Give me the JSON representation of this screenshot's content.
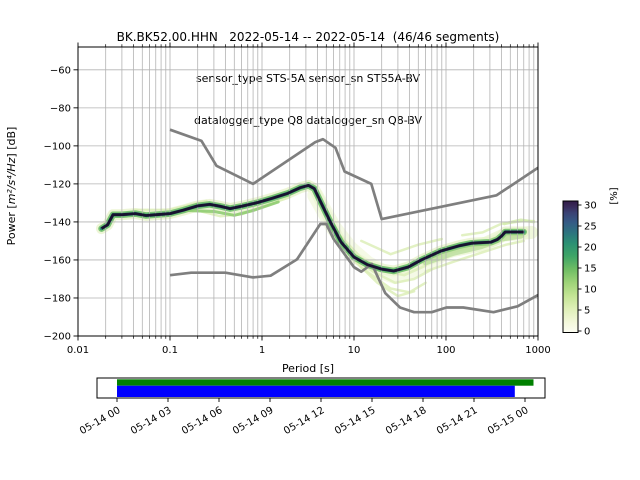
{
  "title": {
    "line1": "BK.BK52.00.HHN   2022-05-14 -- 2022-05-14  (46/46 segments)",
    "line2": "sensor_type STS-5A sensor_sn STS5A-BV",
    "line3": "datalogger_type Q8 datalogger_sn Q8-BV"
  },
  "chart_data": {
    "type": "heatmap",
    "title": "BK.BK52.00.HHN   2022-05-14 -- 2022-05-14  (46/46 segments)",
    "xlabel": "Period [s]",
    "ylabel_prefix": "Power [",
    "ylabel_math": "m²/s⁴/Hz",
    "ylabel_suffix": "] [dB]",
    "xlim": [
      0.01,
      1000
    ],
    "ylim": [
      -200,
      -48
    ],
    "grid": true,
    "grid_color": "#b3b3b3",
    "xticks": {
      "values": [
        0.01,
        0.1,
        1,
        10,
        100,
        1000
      ],
      "labels": [
        "0.01",
        "0.1",
        "1",
        "10",
        "100",
        "1000"
      ]
    },
    "yticks": {
      "values": [
        -200,
        -180,
        -160,
        -140,
        -120,
        -100,
        -80,
        -60
      ],
      "labels": [
        "−200",
        "−180",
        "−160",
        "−140",
        "−120",
        "−100",
        "−80",
        "−60"
      ]
    },
    "colorbar": {
      "label": "[%]",
      "ticks": [
        0,
        5,
        10,
        15,
        20,
        25,
        30
      ],
      "vmax": 31,
      "stops": [
        [
          0,
          "#fdfdf3"
        ],
        [
          0.08,
          "#f3f8da"
        ],
        [
          0.18,
          "#dff0b8"
        ],
        [
          0.28,
          "#c3e494"
        ],
        [
          0.38,
          "#9ed378"
        ],
        [
          0.48,
          "#6fbd64"
        ],
        [
          0.58,
          "#3fa567"
        ],
        [
          0.68,
          "#2b9073"
        ],
        [
          0.76,
          "#2d737f"
        ],
        [
          0.84,
          "#355a85"
        ],
        [
          0.91,
          "#3a4274"
        ],
        [
          0.96,
          "#392a59"
        ],
        [
          1.0,
          "#311b47"
        ]
      ]
    },
    "noise_models": {
      "color": "#7f7f7f",
      "nhnm": [
        [
          0.1,
          -91.5
        ],
        [
          0.22,
          -97.4
        ],
        [
          0.32,
          -110.5
        ],
        [
          0.8,
          -120.0
        ],
        [
          3.8,
          -98.0
        ],
        [
          4.6,
          -96.5
        ],
        [
          6.3,
          -101.0
        ],
        [
          7.9,
          -113.5
        ],
        [
          15.4,
          -120.0
        ],
        [
          20.0,
          -138.5
        ],
        [
          354.8,
          -126.0
        ],
        [
          1000,
          -111.5
        ]
      ],
      "nlnm": [
        [
          0.1,
          -168.0
        ],
        [
          0.17,
          -166.7
        ],
        [
          0.4,
          -166.7
        ],
        [
          0.8,
          -169.2
        ],
        [
          1.24,
          -168.3
        ],
        [
          2.4,
          -159.7
        ],
        [
          4.3,
          -141.1
        ],
        [
          5.0,
          -141.1
        ],
        [
          6.0,
          -149.0
        ],
        [
          10.0,
          -163.8
        ],
        [
          12.0,
          -166.2
        ],
        [
          15.6,
          -162.1
        ],
        [
          21.9,
          -177.5
        ],
        [
          31.6,
          -185.0
        ],
        [
          45.0,
          -187.5
        ],
        [
          70.0,
          -187.5
        ],
        [
          101.0,
          -185.0
        ],
        [
          154.0,
          -185.0
        ],
        [
          328.0,
          -187.5
        ],
        [
          600.0,
          -184.4
        ],
        [
          1000,
          -178.5
        ]
      ]
    },
    "mode_color": "#18122f",
    "mode_line": [
      [
        0.018,
        -143.5
      ],
      [
        0.021,
        -141.5
      ],
      [
        0.024,
        -136.2
      ],
      [
        0.03,
        -136.2
      ],
      [
        0.042,
        -135.6
      ],
      [
        0.055,
        -136.6
      ],
      [
        0.08,
        -136.0
      ],
      [
        0.1,
        -135.6
      ],
      [
        0.14,
        -133.8
      ],
      [
        0.2,
        -131.6
      ],
      [
        0.27,
        -130.8
      ],
      [
        0.35,
        -131.8
      ],
      [
        0.45,
        -133.0
      ],
      [
        0.6,
        -131.8
      ],
      [
        0.9,
        -129.8
      ],
      [
        1.3,
        -127.5
      ],
      [
        1.9,
        -125.0
      ],
      [
        2.6,
        -122.0
      ],
      [
        3.2,
        -120.8
      ],
      [
        3.7,
        -122.5
      ],
      [
        4.2,
        -128.0
      ],
      [
        5.6,
        -140.5
      ],
      [
        7.2,
        -150.5
      ],
      [
        10,
        -158.5
      ],
      [
        14,
        -162.5
      ],
      [
        20,
        -164.8
      ],
      [
        27,
        -165.8
      ],
      [
        39,
        -163.7
      ],
      [
        54,
        -160.0
      ],
      [
        88,
        -155.3
      ],
      [
        140,
        -152.5
      ],
      [
        190,
        -151.2
      ],
      [
        310,
        -150.6
      ],
      [
        360,
        -149.3
      ],
      [
        400,
        -147.5
      ],
      [
        440,
        -145.3
      ],
      [
        700,
        -145.3
      ]
    ],
    "cloud_bands": [
      {
        "points": "mode",
        "color": "#e8f3cc",
        "width": 11,
        "opacity": 0.8
      },
      {
        "points": [
          [
            3.8,
            -126
          ],
          [
            6,
            -143
          ],
          [
            9,
            -154
          ],
          [
            14,
            -162
          ],
          [
            20,
            -166
          ],
          [
            28,
            -168.5
          ],
          [
            40,
            -166
          ],
          [
            60,
            -162
          ],
          [
            90,
            -157
          ]
        ],
        "color": "#eef6d6",
        "width": 16,
        "opacity": 0.6
      },
      {
        "points": [
          [
            60,
            -160
          ],
          [
            120,
            -155
          ],
          [
            250,
            -152
          ],
          [
            420,
            -147
          ],
          [
            850,
            -145.5
          ]
        ],
        "color": "#e8f3cc",
        "width": 13,
        "opacity": 0.7
      },
      {
        "points": [
          [
            4.2,
            -130
          ],
          [
            7,
            -147
          ],
          [
            12,
            -159
          ],
          [
            22,
            -166
          ],
          [
            35,
            -168
          ],
          [
            60,
            -163
          ]
        ],
        "color": "#ddefb8",
        "width": 2.5,
        "opacity": 0.85
      },
      {
        "points": [
          [
            5,
            -137
          ],
          [
            9,
            -155
          ],
          [
            16,
            -166
          ],
          [
            28,
            -172
          ],
          [
            45,
            -170
          ],
          [
            70,
            -165
          ]
        ],
        "color": "#ddefb8",
        "width": 2.5,
        "opacity": 0.85
      },
      {
        "points": [
          [
            6,
            -143
          ],
          [
            12,
            -164
          ],
          [
            25,
            -175
          ],
          [
            40,
            -177
          ],
          [
            60,
            -172
          ]
        ],
        "color": "#ddefb8",
        "width": 2.5,
        "opacity": 0.85
      },
      {
        "points": [
          [
            9,
            -158
          ],
          [
            18,
            -172
          ],
          [
            30,
            -179
          ],
          [
            45,
            -176.5
          ]
        ],
        "color": "#ddefb8",
        "width": 2.5,
        "opacity": 0.85
      },
      {
        "points": [
          [
            12,
            -150
          ],
          [
            25,
            -157
          ],
          [
            50,
            -152
          ],
          [
            90,
            -149
          ]
        ],
        "color": "#ddefb8",
        "width": 2.5,
        "opacity": 0.85
      },
      {
        "points": [
          [
            150,
            -147
          ],
          [
            250,
            -145.5
          ],
          [
            400,
            -141
          ],
          [
            700,
            -139.5
          ],
          [
            900,
            -139.5
          ]
        ],
        "color": "#ddefb8",
        "width": 2.5,
        "opacity": 0.85
      },
      {
        "points": [
          [
            60,
            -166
          ],
          [
            120,
            -161
          ],
          [
            250,
            -156
          ],
          [
            450,
            -152
          ],
          [
            700,
            -150
          ]
        ],
        "color": "#ddefb8",
        "width": 2.5,
        "opacity": 0.85
      },
      {
        "points": [
          [
            0.2,
            -134
          ],
          [
            0.35,
            -137
          ],
          [
            0.6,
            -136
          ],
          [
            1,
            -132
          ],
          [
            2,
            -127
          ]
        ],
        "color": "#ddefb8",
        "width": 2.5,
        "opacity": 0.85
      },
      {
        "points": [
          [
            0.04,
            -133.5
          ],
          [
            0.1,
            -133.5
          ],
          [
            0.25,
            -128.8
          ]
        ],
        "color": "#ddefb8",
        "width": 2,
        "opacity": 0.85
      },
      {
        "points": [
          [
            430,
            -141
          ],
          [
            650,
            -139
          ],
          [
            900,
            -140
          ]
        ],
        "color": "#d4ecae",
        "width": 3,
        "opacity": 0.85
      },
      {
        "points": "mode",
        "color": "#66bb61",
        "width": 6.5,
        "opacity": 0.85
      },
      {
        "points": [
          [
            0.15,
            -134
          ],
          [
            0.3,
            -134.5
          ],
          [
            0.5,
            -136.5
          ],
          [
            0.8,
            -134
          ],
          [
            1.5,
            -129.5
          ]
        ],
        "color": "#8fcc71",
        "width": 3,
        "opacity": 0.9
      },
      {
        "points": [
          [
            60,
            -161
          ],
          [
            120,
            -156
          ],
          [
            240,
            -152.5
          ],
          [
            400,
            -148.5
          ],
          [
            650,
            -147
          ]
        ],
        "color": "#a2d47f",
        "width": 7,
        "opacity": 0.55
      },
      {
        "points": "mode",
        "color": "#2a8a74",
        "width": 3.4,
        "opacity": 0.95
      }
    ]
  },
  "time_axis": {
    "tick_labels": [
      "05-14 00",
      "05-14 03",
      "05-14 06",
      "05-14 09",
      "05-14 12",
      "05-14 15",
      "05-14 18",
      "05-14 21",
      "05-15 00"
    ],
    "hours_range": [
      0,
      24
    ],
    "green_span_hours": [
      0,
      24.5
    ],
    "blue_span_hours": [
      0,
      23.4
    ],
    "green_color": "#008000",
    "blue_color": "#0000ff"
  }
}
